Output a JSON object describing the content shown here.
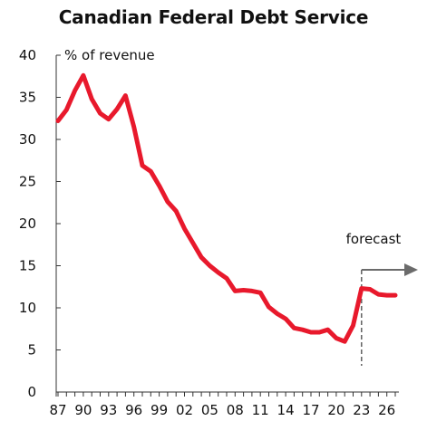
{
  "chart_data": {
    "type": "line",
    "title": "Canadian Federal Debt Service",
    "ylabel": "% of revenue",
    "xlabel": "",
    "ylim": [
      0,
      40
    ],
    "yticks": [
      0,
      5,
      10,
      15,
      20,
      25,
      30,
      35,
      40
    ],
    "x_tick_labels": [
      "87",
      "90",
      "93",
      "96",
      "99",
      "02",
      "05",
      "08",
      "11",
      "14",
      "17",
      "20",
      "23",
      "26"
    ],
    "forecast_label": "forecast",
    "forecast_start_year": 2023,
    "grid": false,
    "series": [
      {
        "name": "",
        "color": "#e8192c",
        "x": [
          1987,
          1988,
          1989,
          1990,
          1991,
          1992,
          1993,
          1994,
          1995,
          1996,
          1997,
          1998,
          1999,
          2000,
          2001,
          2002,
          2003,
          2004,
          2005,
          2006,
          2007,
          2008,
          2009,
          2010,
          2011,
          2012,
          2013,
          2014,
          2015,
          2016,
          2017,
          2018,
          2019,
          2020,
          2021,
          2022,
          2023,
          2024,
          2025,
          2026,
          2027
        ],
        "values": [
          32.2,
          33.5,
          35.8,
          37.6,
          34.8,
          33.1,
          32.4,
          33.6,
          35.2,
          31.5,
          26.9,
          26.2,
          24.5,
          22.6,
          21.5,
          19.4,
          17.7,
          16.0,
          15.0,
          14.2,
          13.5,
          12.0,
          12.1,
          12.0,
          11.8,
          10.1,
          9.3,
          8.7,
          7.6,
          7.4,
          7.1,
          7.1,
          7.4,
          6.4,
          6.0,
          7.9,
          12.3,
          12.2,
          11.6,
          11.5,
          11.5
        ]
      }
    ]
  }
}
